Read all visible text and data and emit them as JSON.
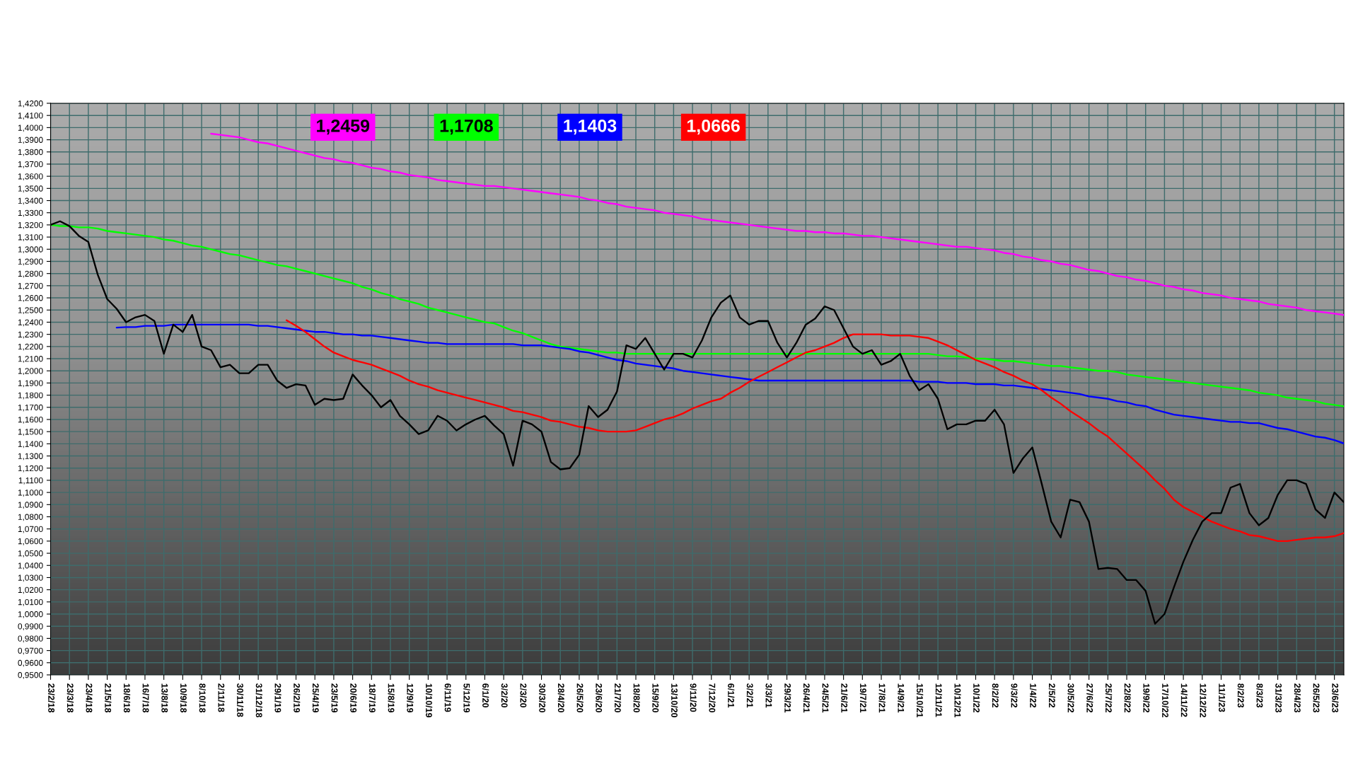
{
  "chart_data": {
    "type": "line",
    "categories": [
      "23/2/18",
      null,
      "23/3/18",
      null,
      "23/4/18",
      null,
      "21/5/18",
      null,
      "18/6/18",
      null,
      "16/7/18",
      null,
      "13/8/18",
      null,
      "10/9/18",
      null,
      "8/10/18",
      null,
      "2/11/18",
      null,
      "30/11/18",
      null,
      "31/12/18",
      null,
      "29/1/19",
      null,
      "26/2/19",
      null,
      "25/4/19",
      null,
      "23/5/19",
      null,
      "20/6/19",
      null,
      "18/7/19",
      null,
      "15/8/19",
      null,
      "12/9/19",
      null,
      "10/10/19",
      null,
      "6/11/19",
      null,
      "5/12/19",
      null,
      "6/1/20",
      null,
      "3/2/20",
      null,
      "2/3/20",
      null,
      "30/3/20",
      null,
      "28/4/20",
      null,
      "26/5/20",
      null,
      "23/6/20",
      null,
      "21/7/20",
      null,
      "18/8/20",
      null,
      "15/9/20",
      null,
      "13/10/20",
      null,
      "9/11/20",
      null,
      "7/12/20",
      null,
      "6/1/21",
      null,
      "3/2/21",
      null,
      "3/3/21",
      null,
      "29/3/21",
      null,
      "26/4/21",
      null,
      "24/5/21",
      null,
      "21/6/21",
      null,
      "19/7/21",
      null,
      "17/8/21",
      null,
      "14/9/21",
      null,
      "15/10/21",
      null,
      "12/11/21",
      null,
      "10/12/21",
      null,
      "10/1/22",
      null,
      "8/2/22",
      null,
      "9/3/22",
      null,
      "1/4/22",
      null,
      "2/5/22",
      null,
      "30/5/22",
      null,
      "27/6/22",
      null,
      "25/7/22",
      null,
      "22/8/22",
      null,
      "19/9/22",
      null,
      "17/10/22",
      null,
      "14/11/22",
      null,
      "12/12/22",
      null,
      "11/1/23",
      null,
      "8/2/23",
      null,
      "8/3/23",
      null,
      "31/3/23",
      null,
      "28/4/23",
      null,
      "26/5/23",
      null,
      "23/6/23",
      null
    ],
    "series": [
      {
        "color": "#ff00ff",
        "values": [
          null,
          null,
          null,
          null,
          null,
          null,
          null,
          null,
          null,
          null,
          null,
          null,
          null,
          null,
          null,
          null,
          null,
          1.395,
          1.394,
          1.393,
          1.392,
          1.39,
          1.388,
          1.387,
          1.385,
          1.383,
          1.381,
          1.379,
          1.377,
          1.375,
          1.374,
          1.372,
          1.371,
          1.369,
          1.367,
          1.366,
          1.364,
          1.363,
          1.361,
          1.36,
          1.359,
          1.357,
          1.356,
          1.355,
          1.354,
          1.353,
          1.352,
          1.352,
          1.351,
          1.35,
          1.349,
          1.348,
          1.347,
          1.346,
          1.345,
          1.344,
          1.343,
          1.341,
          1.34,
          1.338,
          1.337,
          1.335,
          1.334,
          1.333,
          1.332,
          1.33,
          1.329,
          1.328,
          1.327,
          1.325,
          1.324,
          1.323,
          1.322,
          1.321,
          1.32,
          1.319,
          1.318,
          1.317,
          1.316,
          1.315,
          1.315,
          1.314,
          1.314,
          1.313,
          1.313,
          1.312,
          1.311,
          1.311,
          1.31,
          1.309,
          1.308,
          1.307,
          1.306,
          1.305,
          1.304,
          1.303,
          1.302,
          1.302,
          1.301,
          1.3,
          1.299,
          1.297,
          1.296,
          1.294,
          1.293,
          1.291,
          1.29,
          1.288,
          1.287,
          1.285,
          1.283,
          1.282,
          1.28,
          1.278,
          1.277,
          1.275,
          1.274,
          1.272,
          1.27,
          1.269,
          1.267,
          1.266,
          1.264,
          1.263,
          1.262,
          1.26,
          1.259,
          1.258,
          1.257,
          1.255,
          1.254,
          1.253,
          1.252,
          1.25,
          1.249,
          1.248,
          1.247,
          1.2459
        ]
      },
      {
        "color": "#00ff00",
        "values": [
          1.32,
          1.319,
          1.319,
          1.318,
          1.318,
          1.317,
          1.315,
          1.314,
          1.313,
          1.312,
          1.311,
          1.31,
          1.308,
          1.307,
          1.305,
          1.303,
          1.302,
          1.3,
          1.298,
          1.296,
          1.295,
          1.293,
          1.291,
          1.289,
          1.287,
          1.286,
          1.284,
          1.282,
          1.28,
          1.278,
          1.276,
          1.274,
          1.272,
          1.269,
          1.267,
          1.264,
          1.262,
          1.259,
          1.257,
          1.255,
          1.252,
          1.25,
          1.248,
          1.246,
          1.244,
          1.242,
          1.24,
          1.239,
          1.236,
          1.233,
          1.231,
          1.228,
          1.225,
          1.222,
          1.22,
          1.219,
          1.218,
          1.217,
          1.216,
          1.215,
          1.215,
          1.214,
          1.214,
          1.214,
          1.214,
          1.214,
          1.214,
          1.214,
          1.214,
          1.214,
          1.214,
          1.214,
          1.214,
          1.214,
          1.214,
          1.214,
          1.214,
          1.214,
          1.214,
          1.214,
          1.214,
          1.214,
          1.214,
          1.214,
          1.214,
          1.214,
          1.214,
          1.214,
          1.214,
          1.214,
          1.214,
          1.214,
          1.214,
          1.214,
          1.213,
          1.212,
          1.212,
          1.211,
          1.21,
          1.21,
          1.209,
          1.208,
          1.208,
          1.207,
          1.206,
          1.205,
          1.204,
          1.204,
          1.203,
          1.202,
          1.201,
          1.2,
          1.2,
          1.199,
          1.197,
          1.196,
          1.195,
          1.194,
          1.193,
          1.192,
          1.191,
          1.19,
          1.189,
          1.188,
          1.187,
          1.186,
          1.185,
          1.184,
          1.182,
          1.181,
          1.18,
          1.178,
          1.177,
          1.176,
          1.175,
          1.173,
          1.172,
          1.1708
        ]
      },
      {
        "color": "#0000ff",
        "values": [
          null,
          null,
          null,
          null,
          null,
          null,
          null,
          1.2355,
          1.236,
          1.236,
          1.237,
          1.237,
          1.237,
          1.238,
          1.238,
          1.238,
          1.238,
          1.238,
          1.238,
          1.238,
          1.238,
          1.238,
          1.237,
          1.237,
          1.236,
          1.235,
          1.234,
          1.233,
          1.232,
          1.232,
          1.231,
          1.23,
          1.23,
          1.229,
          1.229,
          1.228,
          1.227,
          1.226,
          1.225,
          1.224,
          1.223,
          1.223,
          1.222,
          1.222,
          1.222,
          1.222,
          1.222,
          1.222,
          1.222,
          1.222,
          1.221,
          1.221,
          1.221,
          1.22,
          1.219,
          1.218,
          1.216,
          1.215,
          1.213,
          1.211,
          1.209,
          1.208,
          1.206,
          1.205,
          1.204,
          1.203,
          1.202,
          1.2,
          1.199,
          1.198,
          1.197,
          1.196,
          1.195,
          1.194,
          1.193,
          1.192,
          1.192,
          1.192,
          1.192,
          1.192,
          1.192,
          1.192,
          1.192,
          1.192,
          1.192,
          1.192,
          1.192,
          1.192,
          1.192,
          1.192,
          1.192,
          1.192,
          1.191,
          1.191,
          1.191,
          1.19,
          1.19,
          1.19,
          1.189,
          1.189,
          1.189,
          1.188,
          1.188,
          1.187,
          1.186,
          1.185,
          1.184,
          1.183,
          1.182,
          1.181,
          1.179,
          1.178,
          1.177,
          1.175,
          1.174,
          1.172,
          1.171,
          1.168,
          1.166,
          1.164,
          1.163,
          1.162,
          1.161,
          1.16,
          1.159,
          1.158,
          1.158,
          1.157,
          1.157,
          1.155,
          1.153,
          1.152,
          1.15,
          1.148,
          1.146,
          1.145,
          1.143,
          1.1403
        ]
      },
      {
        "color": "#ff0000",
        "values": [
          null,
          null,
          null,
          null,
          null,
          null,
          null,
          null,
          null,
          null,
          null,
          null,
          null,
          null,
          null,
          null,
          null,
          null,
          null,
          null,
          null,
          null,
          null,
          null,
          null,
          1.2416,
          1.237,
          1.232,
          1.226,
          1.22,
          1.215,
          1.212,
          1.209,
          1.207,
          1.205,
          1.202,
          1.199,
          1.196,
          1.192,
          1.189,
          1.187,
          1.184,
          1.182,
          1.18,
          1.178,
          1.176,
          1.174,
          1.172,
          1.17,
          1.167,
          1.166,
          1.164,
          1.162,
          1.159,
          1.158,
          1.156,
          1.154,
          1.153,
          1.151,
          1.15,
          1.15,
          1.15,
          1.151,
          1.154,
          1.157,
          1.16,
          1.162,
          1.165,
          1.169,
          1.172,
          1.175,
          1.177,
          1.182,
          1.186,
          1.191,
          1.195,
          1.199,
          1.203,
          1.207,
          1.211,
          1.215,
          1.217,
          1.22,
          1.223,
          1.227,
          1.23,
          1.23,
          1.23,
          1.23,
          1.229,
          1.229,
          1.229,
          1.228,
          1.227,
          1.224,
          1.221,
          1.217,
          1.213,
          1.209,
          1.206,
          1.203,
          1.199,
          1.196,
          1.192,
          1.189,
          1.184,
          1.178,
          1.173,
          1.167,
          1.162,
          1.157,
          1.151,
          1.146,
          1.139,
          1.132,
          1.125,
          1.118,
          1.11,
          1.103,
          1.094,
          1.088,
          1.084,
          1.08,
          1.076,
          1.073,
          1.07,
          1.068,
          1.065,
          1.064,
          1.062,
          1.06,
          1.06,
          1.061,
          1.062,
          1.063,
          1.063,
          1.064,
          1.0666
        ]
      },
      {
        "color": "#000000",
        "values": [
          1.32,
          1.323,
          1.319,
          1.311,
          1.306,
          1.279,
          1.259,
          1.251,
          1.24,
          1.244,
          1.246,
          1.241,
          1.214,
          1.238,
          1.232,
          1.246,
          1.22,
          1.217,
          1.203,
          1.205,
          1.198,
          1.198,
          1.205,
          1.205,
          1.192,
          1.186,
          1.189,
          1.188,
          1.172,
          1.177,
          1.176,
          1.177,
          1.197,
          1.188,
          1.18,
          1.17,
          1.176,
          1.163,
          1.156,
          1.148,
          1.151,
          1.163,
          1.159,
          1.151,
          1.156,
          1.16,
          1.163,
          1.155,
          1.148,
          1.122,
          1.159,
          1.156,
          1.15,
          1.125,
          1.119,
          1.12,
          1.131,
          1.171,
          1.162,
          1.168,
          1.183,
          1.221,
          1.218,
          1.227,
          1.214,
          1.201,
          1.214,
          1.214,
          1.211,
          1.225,
          1.244,
          1.256,
          1.262,
          1.244,
          1.238,
          1.241,
          1.241,
          1.223,
          1.211,
          1.223,
          1.238,
          1.243,
          1.253,
          1.25,
          1.235,
          1.22,
          1.214,
          1.217,
          1.205,
          1.208,
          1.214,
          1.196,
          1.184,
          1.189,
          1.177,
          1.152,
          1.156,
          1.156,
          1.159,
          1.159,
          1.168,
          1.156,
          1.116,
          1.128,
          1.137,
          1.107,
          1.076,
          1.063,
          1.094,
          1.092,
          1.076,
          1.037,
          1.038,
          1.037,
          1.028,
          1.028,
          1.019,
          0.992,
          1.0,
          1.022,
          1.043,
          1.061,
          1.076,
          1.083,
          1.083,
          1.104,
          1.107,
          1.083,
          1.073,
          1.079,
          1.098,
          1.11,
          1.11,
          1.107,
          1.086,
          1.079,
          1.1,
          1.092
        ]
      }
    ],
    "ylim": [
      0.95,
      1.42
    ],
    "yticks": [
      {
        "value": 0.95,
        "label": "0,9500"
      },
      {
        "value": 0.96,
        "label": "0,9600"
      },
      {
        "value": 0.97,
        "label": "0,9700"
      },
      {
        "value": 0.98,
        "label": "0,9800"
      },
      {
        "value": 0.99,
        "label": "0,9900"
      },
      {
        "value": 1.0,
        "label": "1,0000"
      },
      {
        "value": 1.01,
        "label": "1,0100"
      },
      {
        "value": 1.02,
        "label": "1,0200"
      },
      {
        "value": 1.03,
        "label": "1,0300"
      },
      {
        "value": 1.04,
        "label": "1,0400"
      },
      {
        "value": 1.05,
        "label": "1,0500"
      },
      {
        "value": 1.06,
        "label": "1,0600"
      },
      {
        "value": 1.07,
        "label": "1,0700"
      },
      {
        "value": 1.08,
        "label": "1,0800"
      },
      {
        "value": 1.09,
        "label": "1,0900"
      },
      {
        "value": 1.1,
        "label": "1,1000"
      },
      {
        "value": 1.11,
        "label": "1,1100"
      },
      {
        "value": 1.12,
        "label": "1,1200"
      },
      {
        "value": 1.13,
        "label": "1,1300"
      },
      {
        "value": 1.14,
        "label": "1,1400"
      },
      {
        "value": 1.15,
        "label": "1,1500"
      },
      {
        "value": 1.16,
        "label": "1,1600"
      },
      {
        "value": 1.17,
        "label": "1,1700"
      },
      {
        "value": 1.18,
        "label": "1,1800"
      },
      {
        "value": 1.19,
        "label": "1,1900"
      },
      {
        "value": 1.2,
        "label": "1,2000"
      },
      {
        "value": 1.21,
        "label": "1,2100"
      },
      {
        "value": 1.22,
        "label": "1,2200"
      },
      {
        "value": 1.23,
        "label": "1,2300"
      },
      {
        "value": 1.24,
        "label": "1,2400"
      },
      {
        "value": 1.25,
        "label": "1,2500"
      },
      {
        "value": 1.26,
        "label": "1,2600"
      },
      {
        "value": 1.27,
        "label": "1,2700"
      },
      {
        "value": 1.28,
        "label": "1,2800"
      },
      {
        "value": 1.29,
        "label": "1,2900"
      },
      {
        "value": 1.3,
        "label": "1,3000"
      },
      {
        "value": 1.31,
        "label": "1,3100"
      },
      {
        "value": 1.32,
        "label": "1,3200"
      },
      {
        "value": 1.33,
        "label": "1,3300"
      },
      {
        "value": 1.34,
        "label": "1,3400"
      },
      {
        "value": 1.35,
        "label": "1,3500"
      },
      {
        "value": 1.36,
        "label": "1,3600"
      },
      {
        "value": 1.37,
        "label": "1,3700"
      },
      {
        "value": 1.38,
        "label": "1,3800"
      },
      {
        "value": 1.39,
        "label": "1,3900"
      },
      {
        "value": 1.4,
        "label": "1,4000"
      },
      {
        "value": 1.41,
        "label": "1,4100"
      },
      {
        "value": 1.42,
        "label": "1,4200"
      }
    ],
    "grid": true,
    "annotations": [
      "1,2459",
      "1,1708",
      "1,1403",
      "1,0666"
    ]
  }
}
